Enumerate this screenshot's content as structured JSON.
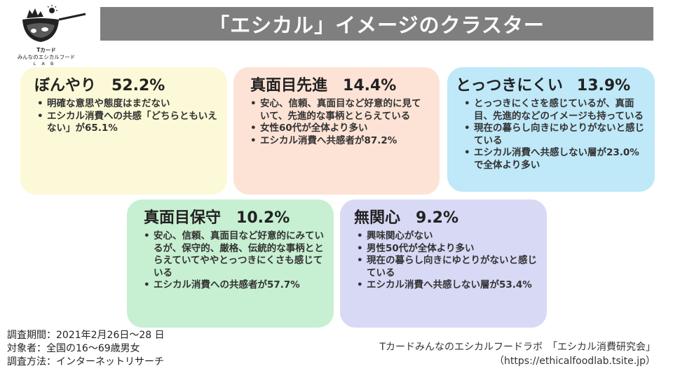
{
  "logo": {
    "line1": "Tカード",
    "line2": "みんなのエシカルフード",
    "line3": "LAB"
  },
  "title": "「エシカル」イメージのクラスター",
  "clusters": [
    {
      "name": "ぼんやり",
      "percent": "52.2%",
      "bullets": [
        "明確な意思や態度はまだない",
        "エシカル消費への共感「どちらともいえない」が65.1%"
      ],
      "color": "#fcf9d8"
    },
    {
      "name": "真面目先進",
      "percent": "14.4%",
      "bullets": [
        "安心、信頼、真面目など好意的に見ていて、先進的な事柄ととらえている",
        "女性60代が全体より多い",
        "エシカル消費へ共感者が87.2%"
      ],
      "color": "#fde3d5"
    },
    {
      "name": "とっつきにくい",
      "percent": "13.9%",
      "bullets": [
        "とっつきにくさを感じているが、真面目、先進的などのイメージも持っている",
        "現在の暮らし向きにゆとりがないと感じている",
        "エシカル消費へ共感しない層が23.0%で全体より多い"
      ],
      "color": "#bfe8f8"
    },
    {
      "name": "真面目保守",
      "percent": "10.2%",
      "bullets": [
        "安心、信頼、真面目など好意的にみているが、保守的、厳格、伝統的な事柄ととらえていてややとっつきにくさも感じている",
        "エシカル消費への共感者が57.7%"
      ],
      "color": "#c7efd1"
    },
    {
      "name": "無関心",
      "percent": "9.2%",
      "bullets": [
        "興味関心がない",
        "男性50代が全体より多い",
        "現在の暮らし向きにゆとりがないと感じている",
        "エシカル消費へ共感しない層が53.4%"
      ],
      "color": "#d7d9f5"
    }
  ],
  "survey": {
    "period": "調査期間：2021年2月26日～28 日",
    "target": "対象者：全国の16～69歳男女",
    "method": "調査方法：インターネットリサーチ"
  },
  "credit": {
    "line1": "Tカードみんなのエシカルフードラボ　「エシカル消費研究会」",
    "line2": "（https://ethicalfoodlab.tsite.jp）"
  }
}
